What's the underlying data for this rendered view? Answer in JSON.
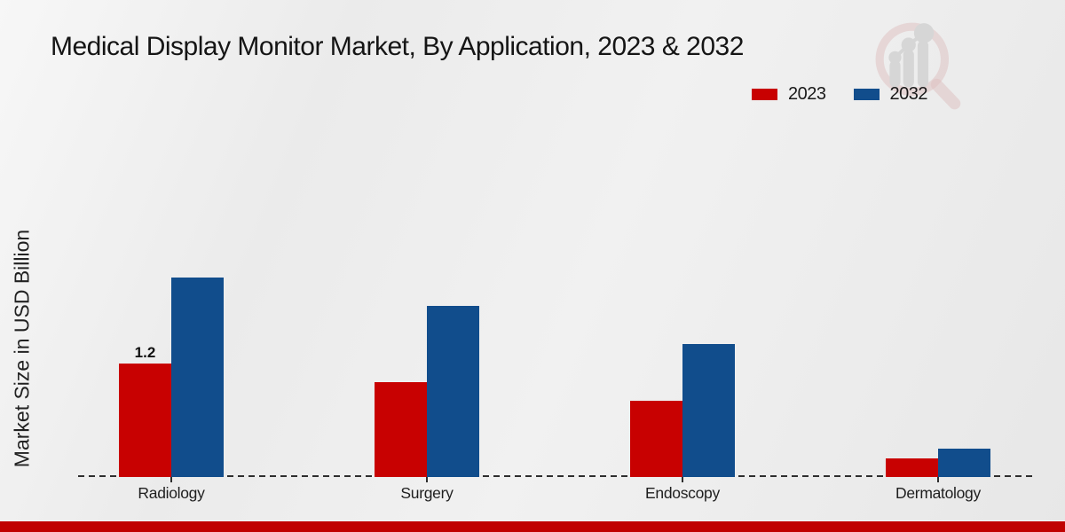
{
  "page": {
    "title": "Medical Display Monitor Market, By Application, 2023 & 2032"
  },
  "chart_data": {
    "type": "bar",
    "title": "Medical Display Monitor Market, By Application, 2023 & 2032",
    "xlabel": "",
    "ylabel": "Market Size in USD Billion",
    "categories": [
      "Radiology",
      "Surgery",
      "Endoscopy",
      "Dermatology"
    ],
    "series": [
      {
        "name": "2023",
        "color": "#c80101",
        "values": [
          1.2,
          1.0,
          0.8,
          0.2
        ],
        "data_labels": [
          "1.2",
          "",
          "",
          ""
        ]
      },
      {
        "name": "2032",
        "color": "#114d8c",
        "values": [
          2.1,
          1.8,
          1.4,
          0.3
        ],
        "data_labels": [
          "",
          "",
          "",
          ""
        ]
      }
    ],
    "ylim": [
      0,
      2.5
    ],
    "grid": false,
    "axis_ticks_visible": false,
    "legend_position": "top-right",
    "baseline_style": "dashed"
  },
  "branding": {
    "logo_icon": "magnifier-growth-chart-logo",
    "logo_ring_color": "#d4a0a0",
    "logo_bars_color": "#c4c4c4",
    "accent_bar_color": "#c00101"
  },
  "colors": {
    "background": "#ebebeb",
    "text": "#1a1a1a",
    "baseline": "#2e2e2e"
  }
}
